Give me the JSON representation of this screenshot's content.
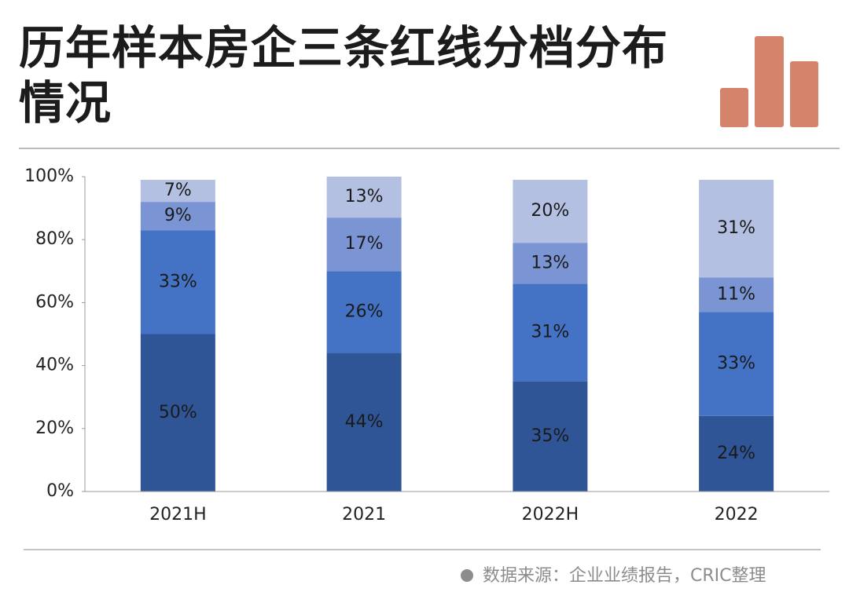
{
  "chart_data": {
    "type": "stacked_bar",
    "title": "历年样本房企三条红线分档分布情况",
    "source": "数据来源：企业业绩报告，CRIC整理",
    "categories": [
      "2021H",
      "2021",
      "2022H",
      "2022"
    ],
    "series": [
      {
        "color": "#2f5597",
        "values": [
          50,
          44,
          35,
          24
        ],
        "value_labels": [
          "50%",
          "44%",
          "35%",
          "24%"
        ]
      },
      {
        "color": "#4472c4",
        "values": [
          33,
          26,
          31,
          33
        ],
        "value_labels": [
          "33%",
          "26%",
          "31%",
          "33%"
        ]
      },
      {
        "color": "#7b95d4",
        "values": [
          9,
          17,
          13,
          11
        ],
        "value_labels": [
          "9%",
          "17%",
          "13%",
          "11%"
        ]
      },
      {
        "color": "#b4c0e2",
        "values": [
          7,
          13,
          20,
          31
        ],
        "value_labels": [
          "7%",
          "13%",
          "20%",
          "31%"
        ]
      }
    ],
    "ylim": [
      0,
      100
    ],
    "yticks": [
      {
        "value": 0,
        "label": "0%"
      },
      {
        "value": 20,
        "label": "20%"
      },
      {
        "value": 40,
        "label": "40%"
      },
      {
        "value": 60,
        "label": "60%"
      },
      {
        "value": 80,
        "label": "80%"
      },
      {
        "value": 100,
        "label": "100%"
      }
    ]
  }
}
